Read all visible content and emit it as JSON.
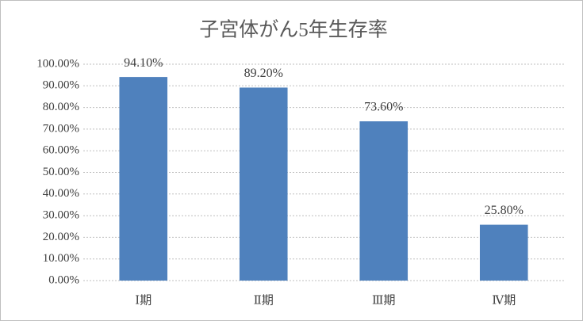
{
  "chart_data": {
    "type": "bar",
    "title": "子宮体がん5年生存率",
    "categories": [
      "Ⅰ期",
      "Ⅱ期",
      "Ⅲ期",
      "Ⅳ期"
    ],
    "values": [
      94.1,
      89.2,
      73.6,
      25.8
    ],
    "value_labels": [
      "94.10%",
      "89.20%",
      "73.60%",
      "25.80%"
    ],
    "color": "#4f81bd",
    "ylim": [
      0,
      100
    ],
    "yticks": [
      {
        "value": 0,
        "label": "0.00%"
      },
      {
        "value": 10,
        "label": "10.00%"
      },
      {
        "value": 20,
        "label": "20.00%"
      },
      {
        "value": 30,
        "label": "30.00%"
      },
      {
        "value": 40,
        "label": "40.00%"
      },
      {
        "value": 50,
        "label": "50.00%"
      },
      {
        "value": 60,
        "label": "60.00%"
      },
      {
        "value": 70,
        "label": "70.00%"
      },
      {
        "value": 80,
        "label": "80.00%"
      },
      {
        "value": 90,
        "label": "90.00%"
      },
      {
        "value": 100,
        "label": "100.00%"
      }
    ],
    "grid": true
  }
}
